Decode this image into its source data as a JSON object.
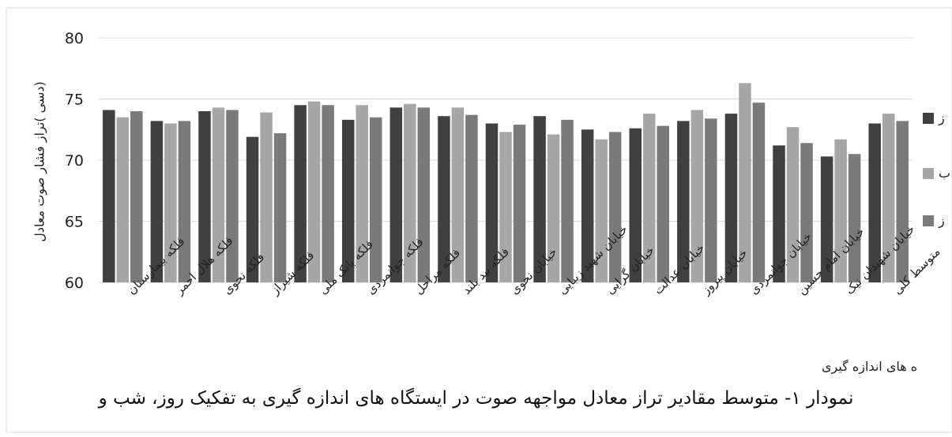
{
  "chart_data": {
    "type": "bar",
    "ylabel": "(دسی )تراز فشار صوت معادل",
    "xlabel": "ه های اندازه گیری",
    "ylim": [
      60,
      80
    ],
    "yticks": [
      60,
      65,
      70,
      75,
      80
    ],
    "grid": true,
    "legend_position": "right",
    "categories": [
      "فلکه بیمارستان",
      "فلکه هلال احمر",
      "فلکه نحوی",
      "فلکه شیراز",
      "فلکه بانک ملی",
      "فلکه جوانمردی",
      "فلکه مراحل",
      "فلکه بید بلند",
      "خیابان نحوی",
      "خیابان شهید زیبایی",
      "خیابان گرایی",
      "خیابان عدالت",
      "خیابان پیروز",
      "خیابان جوانمردی",
      "خیابان امام حسین",
      "خیابان شهیدان نیک",
      "متوسط کلی"
    ],
    "series": [
      {
        "name": "ز",
        "color": "#404040",
        "values": [
          74.1,
          73.2,
          74.0,
          71.9,
          74.5,
          73.3,
          74.3,
          73.6,
          73.0,
          73.6,
          72.5,
          72.6,
          73.2,
          73.8,
          71.2,
          70.3,
          73.0
        ]
      },
      {
        "name": "ب",
        "color": "#a6a6a6",
        "values": [
          73.5,
          73.0,
          74.3,
          73.9,
          74.8,
          74.5,
          74.6,
          74.3,
          72.3,
          72.1,
          71.7,
          73.8,
          74.1,
          76.3,
          72.7,
          71.7,
          73.8
        ]
      },
      {
        "name": "ز",
        "color": "#7a7a7a",
        "values": [
          74.0,
          73.2,
          74.1,
          72.2,
          74.5,
          73.5,
          74.3,
          73.7,
          72.9,
          73.3,
          72.3,
          72.8,
          73.4,
          74.7,
          71.4,
          70.5,
          73.2
        ]
      }
    ]
  },
  "caption": "نمودار ۱- متوسط مقادیر تراز معادل مواجهه صوت در ایستگاه های اندازه گیری به تفکیک روز، شب و"
}
